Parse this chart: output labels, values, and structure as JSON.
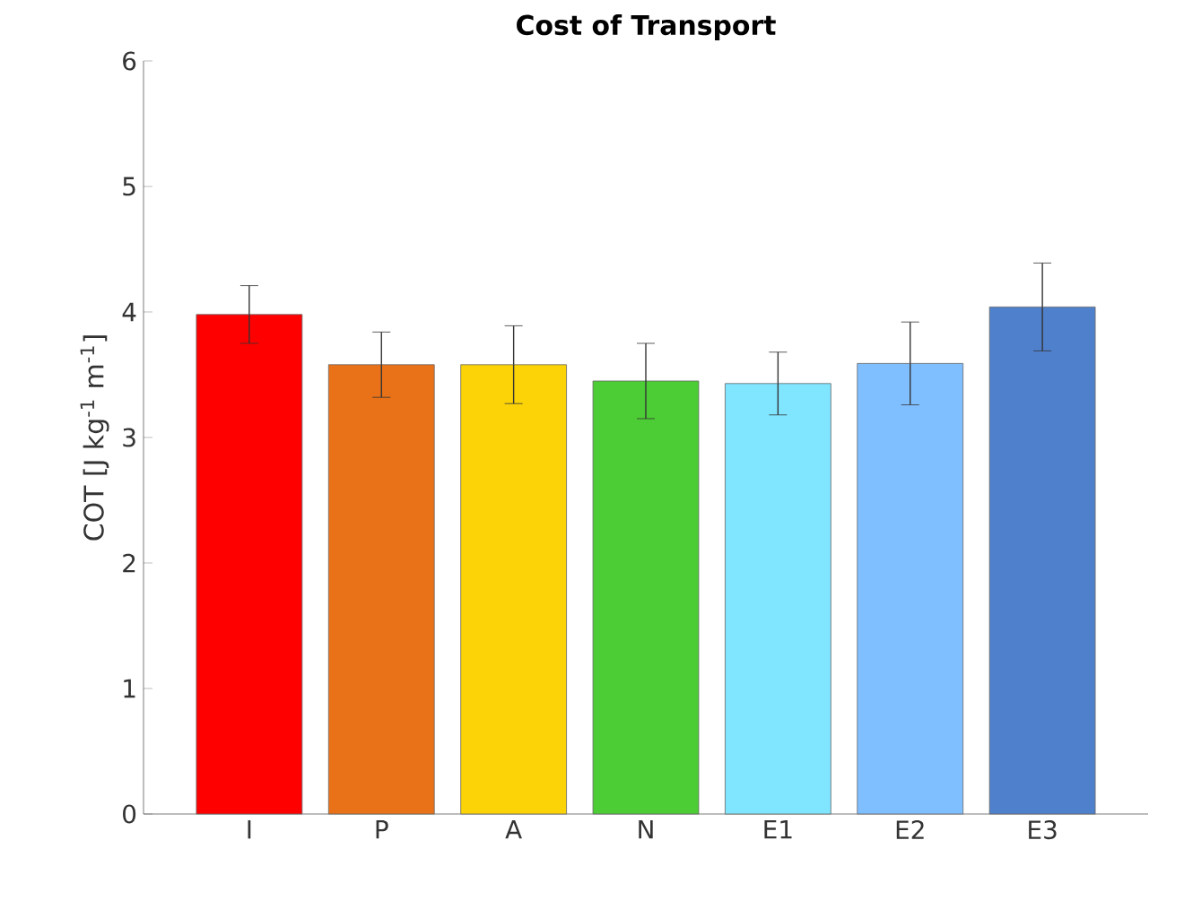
{
  "chart_data": {
    "type": "bar",
    "title": "**Cost of Transport**",
    "ylabel": "COT [J kg$^{-1}$ m$^{-1}$]",
    "categories": [
      "I",
      "P",
      "A",
      "N",
      "E1",
      "E2",
      "E3"
    ],
    "values": [
      3.98,
      3.58,
      3.58,
      3.45,
      3.43,
      3.59,
      4.04
    ],
    "errors": [
      0.23,
      0.26,
      0.31,
      0.3,
      0.25,
      0.33,
      0.35
    ],
    "colors": [
      "#ff0000",
      "#e97117",
      "#fcd307",
      "#4dcd35",
      "#80e6ff",
      "#80bfff",
      "#4f80cc"
    ],
    "ylim": [
      0,
      6
    ],
    "yticks": [
      0,
      1,
      2,
      3,
      4,
      5,
      6
    ],
    "grid": false
  }
}
